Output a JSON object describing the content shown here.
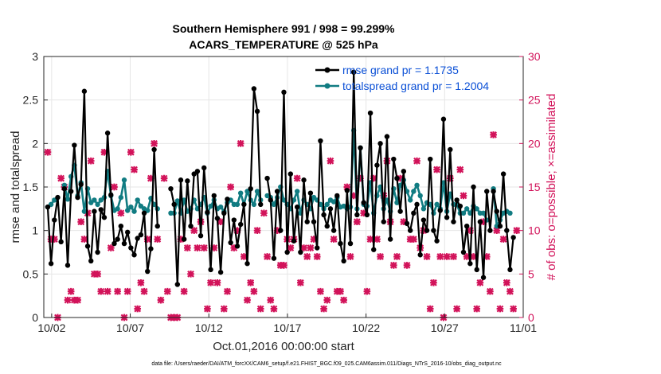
{
  "chart_data": {
    "type": "line",
    "title_line1": "Southern Hemisphere 991 / 998 = 99.299%",
    "title_line2": "ACARS_TEMPERATURE @ 525 hPa",
    "xlabel": "Oct.01,2016 00:00:00 start",
    "ylabel": "rmse and totalspread",
    "y2label": "# of obs: o=possible; ×=assimilated",
    "footnote": "data file: /Users/raeder/DAI/ATM_forcXX/CAM6_setup/f.e21.FHIST_BGC.f09_025.CAM6assim.011/Diags_NTrS_2016-10/obs_diag_output.nc",
    "xlim": [
      1.5,
      32.0
    ],
    "ylim": [
      0,
      3
    ],
    "y2lim": [
      0,
      30
    ],
    "x_tick_values": [
      2,
      7,
      12,
      17,
      22,
      27,
      32
    ],
    "x_tick_labels": [
      "10/02",
      "10/07",
      "10/12",
      "10/17",
      "10/22",
      "10/27",
      "11/01"
    ],
    "y_ticks": [
      "0",
      "0.5",
      "1",
      "1.5",
      "2",
      "2.5",
      "3"
    ],
    "y2_ticks": [
      "0",
      "5",
      "10",
      "15",
      "20",
      "25",
      "30"
    ],
    "grid": true,
    "legend_position": "top-right",
    "series": [
      {
        "name": "rmse grand pr = 1.1735",
        "color": "#000000",
        "values": [
          1.27,
          0.62,
          1.12,
          1.38,
          0.87,
          1.48,
          0.6,
          1.45,
          1.98,
          1.38,
          1.53,
          2.6,
          0.82,
          0.65,
          1.22,
          0.75,
          1.24,
          1.15,
          2.12,
          1.41,
          0.85,
          0.9,
          1.05,
          0.85,
          0.98,
          0.8,
          0.72,
          0.91,
          0.95,
          1.2,
          0.53,
          0.79,
          1.93,
          1.05,
          null,
          null,
          null,
          1.48,
          1.3,
          0.38,
          1.58,
          0.9,
          1.57,
          1.05,
          1.65,
          1.68,
          0.94,
          1.72,
          1.21,
          0.55,
          1.4,
          1.14,
          0.52,
          1.2,
          1.36,
          0.86,
          1.12,
          0.82,
          1.07,
          1.3,
          0.62,
          1.48,
          2.63,
          2.37,
          1.3,
          null,
          1.6,
          1.35,
          0.68,
          1.45,
          1.0,
          2.59,
          0.75,
          1.65,
          0.88,
          1.27,
          0.75,
          1.58,
          1.1,
          1.43,
          1.1,
          0.8,
          2.03,
          1.18,
          1.05,
          1.25,
          1.0,
          1.4,
          0.85,
          0.65,
          1.46,
          0.85,
          2.82,
          1.18,
          1.95,
          1.32,
          1.18,
          2.35,
          0.78,
          1.75,
          2.0,
          1.1,
          2.08,
          0.9,
          1.82,
          1.6,
          1.22,
          1.68,
          1.08,
          1.0,
          1.2,
          1.3,
          0.72,
          1.12,
          1.0,
          1.82,
          1.0,
          0.88,
          1.23,
          2.28,
          1.15,
          1.93,
          1.1,
          1.35,
          1.28,
          0.75,
          1.05,
          0.62,
          1.5,
          0.55,
          1.1,
          0.46,
          1.45,
          1.0,
          1.45,
          1.22,
          1.05,
          1.65,
          1.0,
          0.55,
          0.92
        ]
      },
      {
        "name": "totalspread grand pr = 1.2004",
        "color": "#117c82",
        "values": [
          1.27,
          1.3,
          1.35,
          null,
          null,
          1.52,
          1.36,
          1.62,
          1.75,
          1.4,
          1.55,
          1.22,
          1.48,
          1.32,
          1.35,
          1.3,
          1.35,
          1.38,
          1.68,
          1.4,
          1.23,
          1.25,
          1.38,
          1.58,
          1.23,
          1.27,
          1.22,
          1.35,
          1.28,
          1.25,
          1.23,
          1.37,
          1.3,
          1.25,
          null,
          null,
          null,
          1.2,
          1.2,
          1.34,
          1.2,
          1.35,
          1.22,
          1.25,
          1.35,
          1.25,
          1.3,
          1.38,
          1.2,
          1.28,
          1.35,
          1.25,
          1.27,
          1.22,
          1.32,
          1.35,
          1.3,
          1.3,
          1.43,
          1.3,
          1.45,
          1.35,
          1.3,
          1.45,
          1.35,
          null,
          1.4,
          1.38,
          1.3,
          1.38,
          1.5,
          1.35,
          1.3,
          1.25,
          1.35,
          1.45,
          1.2,
          1.35,
          1.3,
          1.25,
          1.38,
          1.35,
          1.3,
          1.25,
          1.3,
          1.35,
          1.33,
          1.38,
          1.27,
          1.28,
          1.25,
          1.27,
          2.15,
          1.25,
          1.95,
          1.3,
          1.28,
          1.55,
          1.2,
          1.4,
          1.5,
          1.25,
          1.35,
          1.22,
          1.48,
          1.32,
          1.52,
          1.58,
          1.45,
          1.35,
          1.45,
          1.52,
          1.4,
          1.25,
          1.32,
          1.3,
          1.2,
          1.3,
          1.25,
          1.55,
          1.22,
          1.42,
          1.3,
          1.3,
          1.2,
          1.2,
          1.25,
          1.2,
          1.28,
          1.25,
          1.2,
          1.2,
          1.12,
          null,
          1.48,
          1.05,
          1.12,
          1.2,
          1.22,
          1.2,
          null,
          null,
          null
        ]
      }
    ],
    "obs_assimilated": {
      "color": "#d2135a",
      "values": [
        19,
        9,
        9,
        0,
        16,
        15,
        2,
        3,
        2,
        2,
        11,
        9,
        12,
        18,
        5,
        5,
        3,
        19,
        3,
        8,
        15,
        3,
        12,
        0,
        3,
        19,
        17,
        1,
        4,
        3,
        9,
        16,
        20,
        9,
        2,
        16,
        3,
        0,
        0,
        0,
        9,
        3,
        8,
        5,
        10,
        8,
        11,
        8,
        1,
        4,
        8,
        4,
        11,
        1,
        3,
        15,
        8,
        10,
        20,
        7,
        2,
        4,
        3,
        10,
        1,
        12,
        7,
        2,
        1,
        10,
        6,
        6,
        9,
        8,
        9,
        16,
        4,
        8,
        7,
        8,
        9,
        7,
        3,
        1,
        2,
        18,
        9,
        3,
        3,
        2,
        15,
        7,
        14,
        11,
        16,
        12,
        3,
        9,
        16,
        9,
        7,
        14,
        18,
        11,
        6,
        7,
        16,
        11,
        6,
        9,
        9,
        18,
        8,
        10,
        7,
        1,
        4,
        17,
        7,
        0,
        7,
        16,
        7,
        1,
        17,
        14,
        7,
        10,
        7,
        1,
        4,
        11,
        7,
        3,
        21,
        10,
        1,
        9,
        4,
        3,
        1,
        10
      ]
    }
  }
}
